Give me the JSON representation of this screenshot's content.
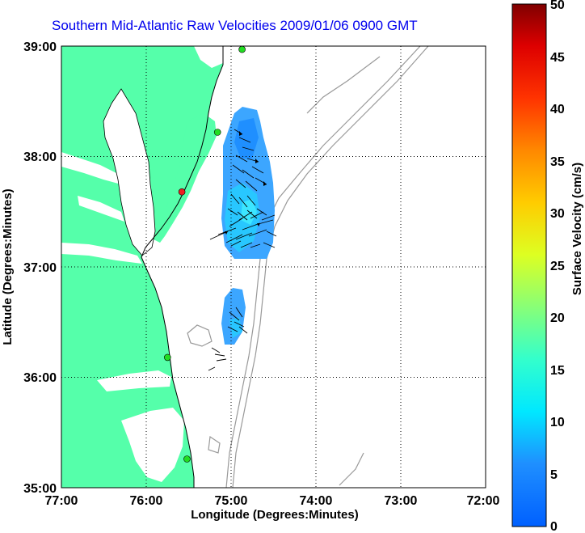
{
  "title": "Southern Mid-Atlantic Raw Velocities 2009/01/06 0900 GMT",
  "xlabel": "Longitude (Degrees:Minutes)",
  "ylabel": "Latitude (Degrees:Minutes)",
  "colorbar_label": "Surface Velocity (cm/s)",
  "x_ticks": [
    "77:00",
    "76:00",
    "75:00",
    "74:00",
    "73:00",
    "72:00"
  ],
  "y_ticks": [
    "39:00",
    "38:00",
    "37:00",
    "36:00",
    "35:00"
  ],
  "colorbar_ticks": [
    "50",
    "45",
    "40",
    "35",
    "30",
    "25",
    "20",
    "15",
    "10",
    "5",
    "0"
  ],
  "colors": {
    "land": "#55ffaa",
    "title": "#0000ee",
    "bathymetry": "#999999",
    "vectors": "#000000",
    "station_active": "#22dd22",
    "station_inactive": "#ee2222"
  },
  "chart_data": {
    "type": "map",
    "xlim": [
      -77,
      -72
    ],
    "ylim": [
      35,
      39
    ],
    "colorbar_range": [
      0,
      50
    ],
    "grid": "dotted",
    "stations": [
      {
        "lon": -74.87,
        "lat": 38.97,
        "status": "active"
      },
      {
        "lon": -75.16,
        "lat": 38.22,
        "status": "active"
      },
      {
        "lon": -75.58,
        "lat": 37.68,
        "status": "inactive"
      },
      {
        "lon": -75.75,
        "lat": 36.18,
        "status": "active"
      },
      {
        "lon": -75.52,
        "lat": 35.26,
        "status": "active"
      }
    ]
  }
}
